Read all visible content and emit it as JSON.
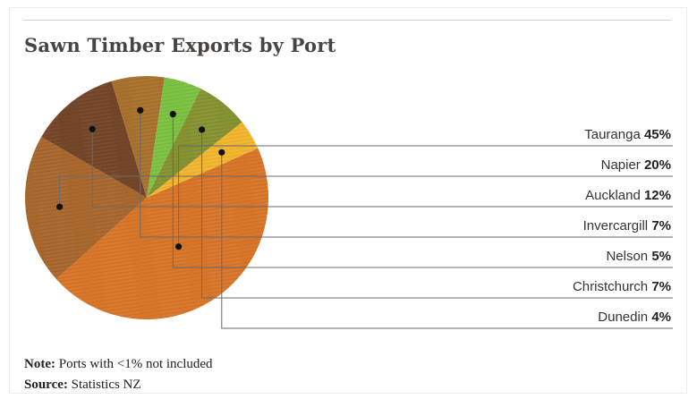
{
  "title": "Sawn Timber Exports by Port",
  "note": {
    "label": "Note:",
    "text": "Ports with <1% not included"
  },
  "source": {
    "label": "Source:",
    "text": "Statistics NZ"
  },
  "chart_data": {
    "type": "pie",
    "title": "Sawn Timber Exports by Port",
    "slices": [
      {
        "label": "Tauranga",
        "value": 45,
        "value_label": "45%",
        "color": "#d8762a"
      },
      {
        "label": "Napier",
        "value": 20,
        "value_label": "20%",
        "color": "#a9682e"
      },
      {
        "label": "Auckland",
        "value": 12,
        "value_label": "12%",
        "color": "#75472a"
      },
      {
        "label": "Invercargill",
        "value": 7,
        "value_label": "7%",
        "color": "#a9722e"
      },
      {
        "label": "Nelson",
        "value": 5,
        "value_label": "5%",
        "color": "#7cc243"
      },
      {
        "label": "Christchurch",
        "value": 7,
        "value_label": "7%",
        "color": "#879232"
      },
      {
        "label": "Dunedin",
        "value": 4,
        "value_label": "4%",
        "color": "#f2b630"
      }
    ],
    "legend": "right"
  }
}
